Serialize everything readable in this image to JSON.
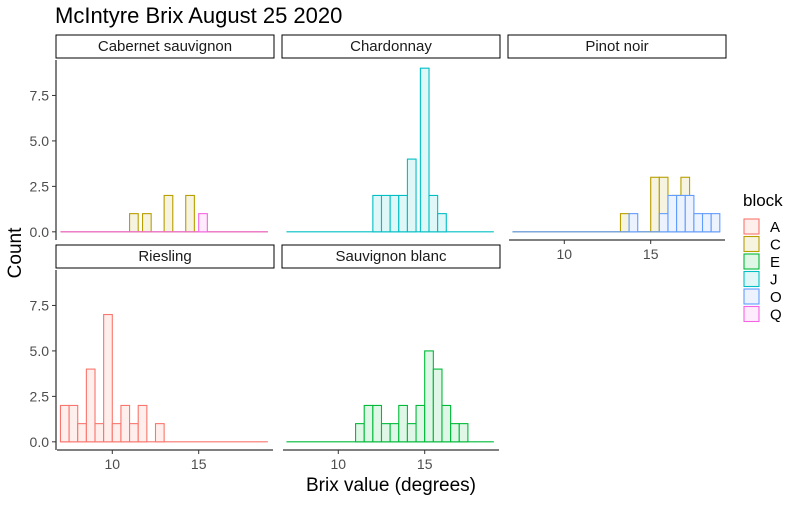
{
  "chart_data": {
    "type": "histogram",
    "title": "McIntyre Brix August 25 2020",
    "xlabel": "Brix value (degrees)",
    "ylabel": "Count",
    "legend": {
      "title": "block",
      "position": "right",
      "entries": [
        {
          "label": "A",
          "color": "#F8766D"
        },
        {
          "label": "C",
          "color": "#B79F00"
        },
        {
          "label": "E",
          "color": "#00BA38"
        },
        {
          "label": "J",
          "color": "#00BFC4"
        },
        {
          "label": "O",
          "color": "#619CFF"
        },
        {
          "label": "Q",
          "color": "#F564E3"
        }
      ]
    },
    "xlim": [
      6.8,
      19.3
    ],
    "ylim": [
      -0.45,
      9.45
    ],
    "bin_width": 0.5,
    "x_ticks": [
      10,
      15
    ],
    "y_ticks": [
      "0.0",
      "2.5",
      "5.0",
      "7.5"
    ],
    "y_tick_values": [
      0,
      2.5,
      5,
      7.5
    ],
    "grid": false,
    "panels": [
      {
        "name": "Cabernet sauvignon",
        "series": [
          {
            "block": "C",
            "bins": [
              [
                11.0,
                1
              ],
              [
                11.75,
                1
              ],
              [
                13.0,
                2
              ],
              [
                14.25,
                2
              ]
            ]
          },
          {
            "block": "Q",
            "bins": [
              [
                15.0,
                1
              ]
            ]
          }
        ]
      },
      {
        "name": "Chardonnay",
        "series": [
          {
            "block": "J",
            "bins": [
              [
                12.0,
                2
              ],
              [
                12.5,
                2
              ],
              [
                13.0,
                2
              ],
              [
                13.5,
                2
              ],
              [
                14.0,
                4
              ],
              [
                14.75,
                9
              ],
              [
                15.25,
                2
              ],
              [
                15.75,
                1
              ]
            ]
          }
        ]
      },
      {
        "name": "Pinot noir",
        "series": [
          {
            "block": "C",
            "bins": [
              [
                13.25,
                1
              ],
              [
                15.0,
                3
              ],
              [
                15.5,
                3
              ],
              [
                16.25,
                2
              ],
              [
                16.75,
                3
              ]
            ]
          },
          {
            "block": "O",
            "bins": [
              [
                13.75,
                1
              ],
              [
                15.5,
                1
              ],
              [
                16.0,
                2
              ],
              [
                16.5,
                2
              ],
              [
                17.0,
                2
              ],
              [
                17.5,
                1
              ],
              [
                18.0,
                1
              ],
              [
                18.5,
                1
              ]
            ]
          }
        ]
      },
      {
        "name": "Riesling",
        "series": [
          {
            "block": "A",
            "bins": [
              [
                7.0,
                2
              ],
              [
                7.5,
                2
              ],
              [
                8.0,
                1
              ],
              [
                8.5,
                4
              ],
              [
                9.0,
                1
              ],
              [
                9.5,
                7
              ],
              [
                10.0,
                1
              ],
              [
                10.5,
                2
              ],
              [
                11.0,
                1
              ],
              [
                11.5,
                2
              ],
              [
                12.5,
                1
              ]
            ]
          }
        ]
      },
      {
        "name": "Sauvignon blanc",
        "series": [
          {
            "block": "E",
            "bins": [
              [
                11.0,
                1
              ],
              [
                11.5,
                2
              ],
              [
                12.0,
                2
              ],
              [
                12.5,
                1
              ],
              [
                13.0,
                1
              ],
              [
                13.5,
                2
              ],
              [
                14.0,
                1
              ],
              [
                14.5,
                2
              ],
              [
                15.0,
                5
              ],
              [
                15.5,
                4
              ],
              [
                16.0,
                2
              ],
              [
                16.5,
                1
              ],
              [
                17.0,
                1
              ]
            ]
          }
        ]
      }
    ]
  }
}
